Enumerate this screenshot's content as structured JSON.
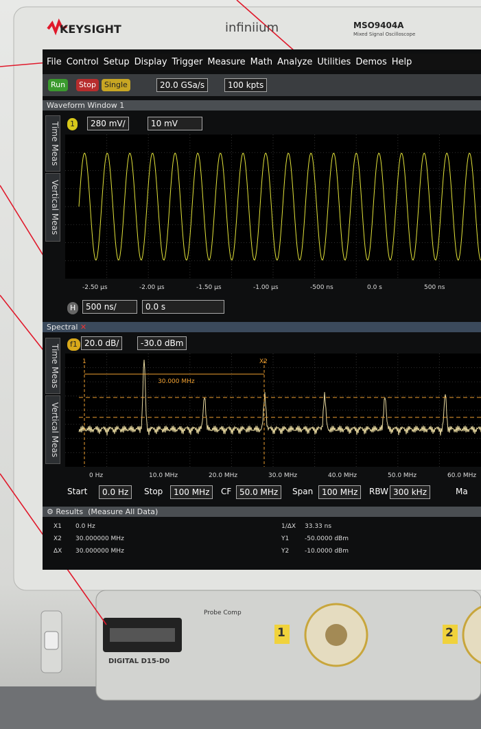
{
  "brand": {
    "logo": "KEYSIGHT",
    "product": "infiniium",
    "model": "MSO9404A",
    "subtitle": "Mixed Signal Oscilloscope"
  },
  "menu": [
    "File",
    "Control",
    "Setup",
    "Display",
    "Trigger",
    "Measure",
    "Math",
    "Analyze",
    "Utilities",
    "Demos",
    "Help"
  ],
  "toolbar": {
    "run": "Run",
    "stop": "Stop",
    "single": "Single",
    "sample_rate": "20.0 GSa/s",
    "memory": "100 kpts"
  },
  "waveform": {
    "title": "Waveform Window 1",
    "channel": "1",
    "scale": "280 mV/",
    "offset": "10 mV",
    "tabs": [
      "Time Meas",
      "Vertical Meas"
    ],
    "x_labels": [
      "-2.50 µs",
      "-2.00 µs",
      "-1.50 µs",
      "-1.00 µs",
      "-500 ns",
      "0.0 s",
      "500 ns"
    ],
    "horizontal": "H",
    "time_scale": "500 ns/",
    "delay": "0.0 s"
  },
  "spectral": {
    "title": "Spectral",
    "function": "f1",
    "scale": "20.0 dB/",
    "offset": "-30.0 dBm",
    "tabs": [
      "Time Meas",
      "Vertical Meas"
    ],
    "marker1": "1",
    "marker2": "X2",
    "delta": "30.000 MHz",
    "x_labels": [
      "0 Hz",
      "10.0 MHz",
      "20.0 MHz",
      "30.0 MHz",
      "40.0 MHz",
      "50.0 MHz",
      "60.0 MHz"
    ],
    "controls": [
      [
        "Start",
        "0.0 Hz"
      ],
      [
        "Stop",
        "100 MHz"
      ],
      [
        "CF",
        "50.0 MHz"
      ],
      [
        "Span",
        "100 MHz"
      ],
      [
        "RBW",
        "300 kHz"
      ]
    ],
    "more": "Ma"
  },
  "results": {
    "title": "Results",
    "subtitle": "(Measure All Data)",
    "left": [
      [
        "X1",
        "0.0 Hz"
      ],
      [
        "X2",
        "30.000000 MHz"
      ],
      [
        "ΔX",
        "30.000000 MHz"
      ]
    ],
    "right": [
      [
        "1/ΔX",
        "33.33 ns"
      ],
      [
        "Y1",
        "-50.0000 dBm"
      ],
      [
        "Y2",
        "-10.0000 dBm"
      ]
    ]
  },
  "panel": {
    "probe_comp": "Probe Comp",
    "digital": "DIGITAL D15-D0",
    "ch1": "1",
    "ch2": "2"
  }
}
